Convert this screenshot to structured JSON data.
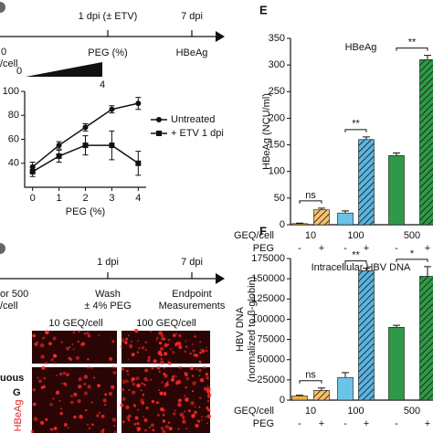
{
  "timeline_a": {
    "left_top": "0",
    "left_bottom": "/cell",
    "tick1": "1 dpi (± ETV)",
    "tick2": "7 dpi",
    "mid": "PEG (%)",
    "end": "HBeAg",
    "wedge_min": "0",
    "wedge_max": "4"
  },
  "timeline_b": {
    "left_top": "or 500",
    "left_bottom": "/cell",
    "tick1": "1 dpi",
    "tick2": "7 dpi",
    "wash": "Wash",
    "peg": "± 4% PEG",
    "end1": "Endpoint",
    "end2": "Measurements"
  },
  "images": {
    "col1": "10 GEQ/cell",
    "col2": "100 GEQ/cell",
    "row1a": "uous",
    "row1b": "G",
    "stain": "HBeAg"
  },
  "chart_data": [
    {
      "type": "line",
      "xlabel": "PEG (%)",
      "x": [
        0,
        1,
        2,
        3,
        4
      ],
      "xlim": [
        -0.3,
        4.3
      ],
      "xticks": [
        0,
        1,
        2,
        3,
        4
      ],
      "ylim": [
        20,
        100
      ],
      "yticks": [
        40,
        60,
        80,
        100
      ],
      "color": "#111",
      "series": [
        {
          "name": "Untreated",
          "marker": "circle",
          "values": [
            37,
            55,
            70,
            85,
            90
          ],
          "errors": [
            4,
            3,
            3,
            3,
            5
          ]
        },
        {
          "name": "+ ETV 1 dpi",
          "marker": "square",
          "values": [
            33,
            46,
            55,
            55,
            40
          ],
          "errors": [
            4,
            5,
            8,
            12,
            10
          ]
        }
      ]
    },
    {
      "type": "bar",
      "panel": "E",
      "title": "HBeAg",
      "ylabel": [
        "HBeAg (NCU/ml)"
      ],
      "ylim": [
        0,
        350
      ],
      "yticks": [
        0,
        50,
        100,
        150,
        200,
        250,
        300,
        350
      ],
      "values": [
        2,
        28,
        22,
        160,
        130,
        310
      ],
      "errors": [
        1,
        3,
        4,
        5,
        5,
        8
      ],
      "colors": [
        "#f0b03c",
        "#f5c26b",
        "#6cc3e8",
        "#5ab4e0",
        "#2e9a47",
        "#2e9a47"
      ],
      "hatched": [
        false,
        true,
        false,
        true,
        false,
        true
      ],
      "group_title": "GEQ/cell",
      "groups": [
        "10",
        "100",
        "500"
      ],
      "peg_title": "PEG",
      "peg": [
        "-",
        "+",
        "-",
        "+",
        "-",
        "+"
      ],
      "significance": [
        "ns",
        "**",
        "**"
      ]
    },
    {
      "type": "bar",
      "panel": "F",
      "title": "Intracellular HBV DNA",
      "ylabel": [
        "HBV DNA",
        "(normalized to β-globin)"
      ],
      "ylim": [
        0,
        175000
      ],
      "yticks": [
        0,
        25000,
        50000,
        75000,
        100000,
        125000,
        150000,
        175000
      ],
      "values": [
        5000,
        12000,
        28000,
        160000,
        90000,
        153000
      ],
      "errors": [
        1000,
        3000,
        6000,
        3000,
        2500,
        12000
      ],
      "colors": [
        "#f0b03c",
        "#f5c26b",
        "#6cc3e8",
        "#5ab4e0",
        "#2e9a47",
        "#2e9a47"
      ],
      "hatched": [
        false,
        true,
        false,
        true,
        false,
        true
      ],
      "group_title": "GEQ/cell",
      "groups": [
        "10",
        "100",
        "500"
      ],
      "peg_title": "PEG",
      "peg": [
        "-",
        "+",
        "-",
        "+",
        "-",
        "+"
      ],
      "significance": [
        "ns",
        "**",
        "*"
      ]
    }
  ]
}
